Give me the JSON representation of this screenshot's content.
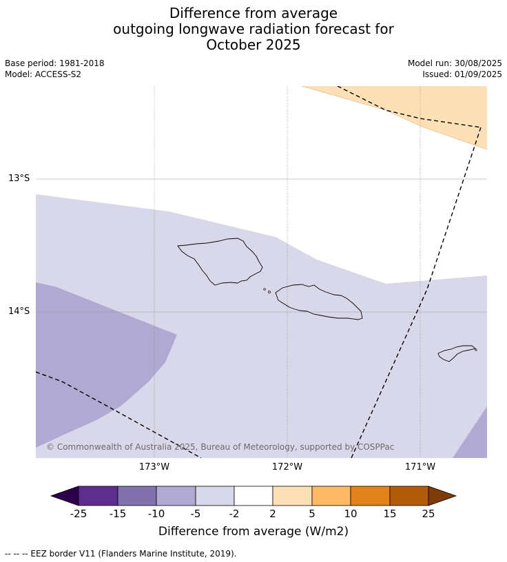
{
  "title": {
    "line1": "Difference from average",
    "line2": "outgoing longwave radiation forecast for",
    "line3": "October 2025"
  },
  "meta": {
    "base_period": "Base period: 1981-2018",
    "model": "Model: ACCESS-S2",
    "model_run": "Model run: 30/08/2025",
    "issued": "Issued: 01/09/2025"
  },
  "map": {
    "lat_labels": [
      "13°S",
      "14°S"
    ],
    "lon_labels": [
      "173°W",
      "172°W",
      "171°W"
    ],
    "copyright": "© Commonwealth of Australia 2025, Bureau of Meteorology, supported by COSPPac",
    "features": [
      "Upolu",
      "Savai'i",
      "Tutuila",
      "EEZ border"
    ]
  },
  "colorbar": {
    "label": "Difference from average (W/m2)",
    "ticks": [
      "-25",
      "-15",
      "-10",
      "-5",
      "-2",
      "2",
      "5",
      "10",
      "15",
      "25"
    ],
    "colors": {
      "lt_neg25": "#2d004b",
      "neg25_neg15": "#5e2e8f",
      "neg15_neg10": "#8171ad",
      "neg10_neg5": "#b0a9d2",
      "neg5_neg2": "#d8d8ea",
      "neg2_2": "#ffffff",
      "2_5": "#fde0b6",
      "5_10": "#fdb965",
      "10_15": "#e2821c",
      "15_25": "#b25b0b",
      "gt_25": "#7f3b08"
    }
  },
  "footnote": "-- -- -- EEZ border V11 (Flanders Marine Institute, 2019)."
}
